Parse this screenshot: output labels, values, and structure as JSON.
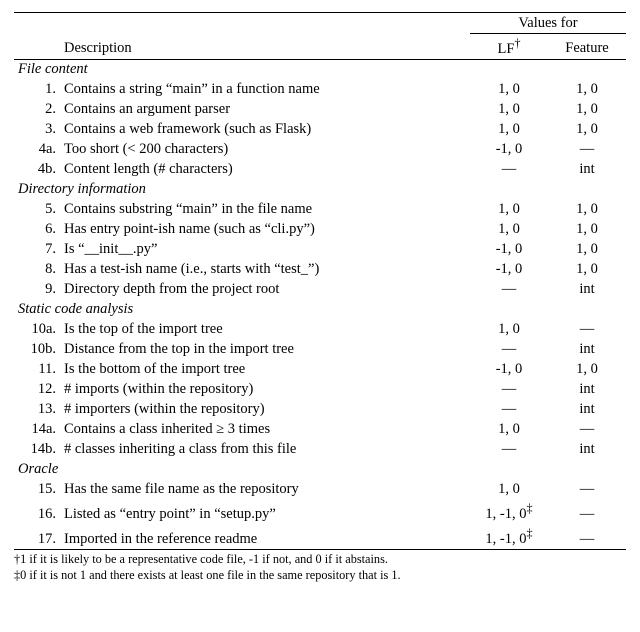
{
  "header": {
    "values_for": "Values for",
    "description": "Description",
    "lf": "LF",
    "lf_dagger": "†",
    "feature": "Feature"
  },
  "sections": [
    {
      "title": "File content",
      "rows": [
        {
          "n": "1.",
          "desc": "Contains a string “main” in a function name",
          "lf": "1, 0",
          "feat": "1, 0"
        },
        {
          "n": "2.",
          "desc": "Contains an argument parser",
          "lf": "1, 0",
          "feat": "1, 0"
        },
        {
          "n": "3.",
          "desc": "Contains a web framework (such as Flask)",
          "lf": "1, 0",
          "feat": "1, 0"
        },
        {
          "n": "4a.",
          "desc": "Too short (< 200 characters)",
          "lf": "-1, 0",
          "feat": "—"
        },
        {
          "n": "4b.",
          "desc": "Content length (# characters)",
          "lf": "—",
          "feat": "int"
        }
      ]
    },
    {
      "title": "Directory information",
      "rows": [
        {
          "n": "5.",
          "desc": "Contains substring “main” in the file name",
          "lf": "1, 0",
          "feat": "1, 0"
        },
        {
          "n": "6.",
          "desc": "Has entry point-ish name (such as “cli.py”)",
          "lf": "1, 0",
          "feat": "1, 0"
        },
        {
          "n": "7.",
          "desc": "Is “__init__.py”",
          "lf": "-1, 0",
          "feat": "1, 0"
        },
        {
          "n": "8.",
          "desc": "Has a test-ish name (i.e., starts with “test_”)",
          "lf": "-1, 0",
          "feat": "1, 0"
        },
        {
          "n": "9.",
          "desc": "Directory depth from the project root",
          "lf": "—",
          "feat": "int"
        }
      ]
    },
    {
      "title": "Static code analysis",
      "rows": [
        {
          "n": "10a.",
          "desc": "Is the top of the import tree",
          "lf": "1, 0",
          "feat": "—"
        },
        {
          "n": "10b.",
          "desc": "Distance from the top in the import tree",
          "lf": "—",
          "feat": "int"
        },
        {
          "n": "11.",
          "desc": "Is the bottom of the import tree",
          "lf": "-1, 0",
          "feat": "1, 0"
        },
        {
          "n": "12.",
          "desc": "# imports (within the repository)",
          "lf": "—",
          "feat": "int"
        },
        {
          "n": "13.",
          "desc": "# importers (within the repository)",
          "lf": "—",
          "feat": "int"
        },
        {
          "n": "14a.",
          "desc": "Contains a class inherited ≥ 3 times",
          "lf": "1, 0",
          "feat": "—"
        },
        {
          "n": "14b.",
          "desc": "# classes inheriting a class from this file",
          "lf": "—",
          "feat": "int"
        }
      ]
    },
    {
      "title": "Oracle",
      "rows": [
        {
          "n": "15.",
          "desc": "Has the same file name as the repository",
          "lf": "1, 0",
          "feat": "—"
        },
        {
          "n": "16.",
          "desc": "Listed as “entry point” in “setup.py”",
          "lf": "1, -1, 0",
          "lf_sup": "‡",
          "feat": "—"
        },
        {
          "n": "17.",
          "desc": "Imported in the reference readme",
          "lf": "1, -1, 0",
          "lf_sup": "‡",
          "feat": "—"
        }
      ]
    }
  ],
  "footnotes": {
    "f1": "†1 if it is likely to be a representative code file, -1 if not, and 0 if it abstains.",
    "f2": "‡0 if it is not 1 and there exists at least one file in the same repository that is 1."
  }
}
